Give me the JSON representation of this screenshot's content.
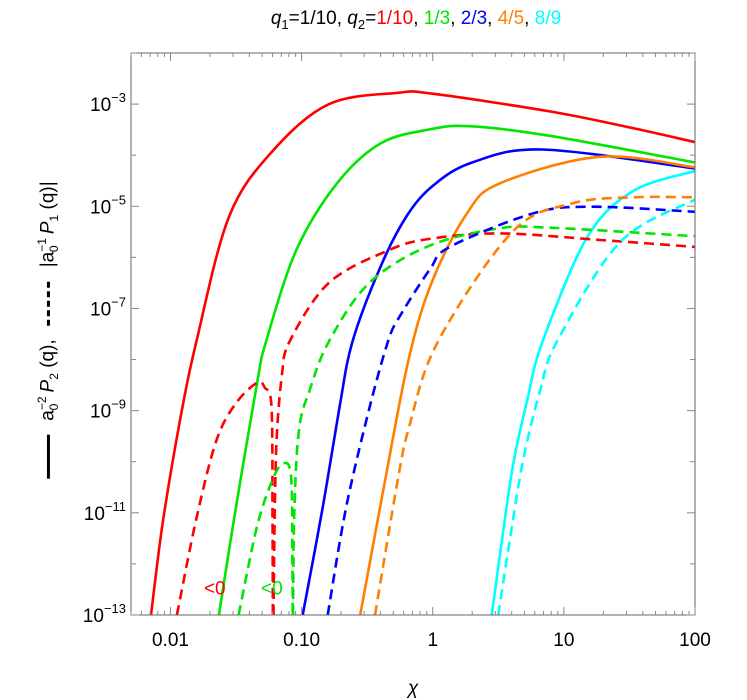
{
  "chart_data": {
    "type": "line",
    "title": {
      "q1_symbol": "q",
      "q1_sub": "1",
      "q1_value": "=1/10, ",
      "q2_symbol": "q",
      "q2_sub": "2",
      "q2_eq": "=",
      "separator": ", ",
      "values": [
        {
          "text": "1/10",
          "color": "#ff0000"
        },
        {
          "text": "1/3",
          "color": "#00e600"
        },
        {
          "text": "2/3",
          "color": "#0000ff"
        },
        {
          "text": "4/5",
          "color": "#ff8000"
        },
        {
          "text": "8/9",
          "color": "#00ffff"
        }
      ]
    },
    "xlabel": "χ",
    "ylabel": {
      "p2_a": "a",
      "p2_a_sub": "0",
      "p2_a_sup": "−2",
      "p2_P": "P",
      "p2_P_sub": "2",
      "p2_arg": "(q),",
      "p1_open": "|a",
      "p1_a_sub": "0",
      "p1_a_sup": "−1",
      "p1_P": "P",
      "p1_P_sub": "1",
      "p1_arg": "(q)|"
    },
    "xscale": "log",
    "yscale": "log",
    "xlim": [
      0.005,
      100
    ],
    "ylim": [
      1e-13,
      0.01
    ],
    "xticks": [
      {
        "value": 0.01,
        "label": "0.01"
      },
      {
        "value": 0.1,
        "label": "0.10"
      },
      {
        "value": 1,
        "label": "1"
      },
      {
        "value": 10,
        "label": "10"
      },
      {
        "value": 100,
        "label": "100"
      }
    ],
    "yticks": [
      {
        "exp": -3,
        "base": "10",
        "sup": "−3"
      },
      {
        "exp": -5,
        "base": "10",
        "sup": "−5"
      },
      {
        "exp": -7,
        "base": "10",
        "sup": "−7"
      },
      {
        "exp": -9,
        "base": "10",
        "sup": "−9"
      },
      {
        "exp": -11,
        "base": "10",
        "sup": "−11"
      },
      {
        "exp": -13,
        "base": "10",
        "sup": "−13"
      }
    ],
    "grid": false,
    "annotations": [
      {
        "text": "<0",
        "x": 0.018,
        "y": 2.5e-13,
        "color": "#ff0000"
      },
      {
        "text": "<0",
        "x": 0.049,
        "y": 2.5e-13,
        "color": "#00e600"
      }
    ],
    "series": [
      {
        "q2": "1/10",
        "style": "solid",
        "color": "#ff0000",
        "branches": [
          [
            [
              0.0071,
              1e-13
            ],
            [
              0.0087,
              6e-12
            ],
            [
              0.0117,
              5.6e-10
            ],
            [
              0.0158,
              2.3e-08
            ],
            [
              0.028,
              6.3e-06
            ],
            [
              0.06,
              0.00012
            ],
            [
              0.162,
              0.001
            ],
            [
              0.54,
              0.00166
            ],
            [
              1.0,
              0.0016
            ],
            [
              7.8,
              0.00072
            ],
            [
              31.6,
              0.00035
            ],
            [
              100,
              0.00018
            ]
          ]
        ]
      },
      {
        "q2": "1/3",
        "style": "solid",
        "color": "#00e600",
        "branches": [
          [
            [
              0.0234,
              1e-13
            ],
            [
              0.0316,
              1.3e-11
            ],
            [
              0.0457,
              3.4e-09
            ],
            [
              0.0537,
              2.3e-08
            ],
            [
              0.0912,
              1.4e-06
            ],
            [
              0.186,
              2.8e-05
            ],
            [
              0.4,
              0.00017
            ],
            [
              0.95,
              0.00032
            ],
            [
              1.9,
              0.00037
            ],
            [
              7.8,
              0.00024
            ],
            [
              100,
              7.2e-05
            ]
          ]
        ]
      },
      {
        "q2": "2/3",
        "style": "solid",
        "color": "#0000ff",
        "branches": [
          [
            [
              0.102,
              1e-13
            ],
            [
              0.145,
              1.3e-11
            ],
            [
              0.195,
              1.2e-09
            ],
            [
              0.245,
              2.3e-08
            ],
            [
              0.4,
              6.6e-07
            ],
            [
              0.63,
              6.3e-06
            ],
            [
              1.0,
              2.5e-05
            ],
            [
              2.0,
              7.2e-05
            ],
            [
              6.9,
              0.000129
            ],
            [
              100,
              5.5e-05
            ]
          ]
        ]
      },
      {
        "q2": "4/5",
        "style": "solid",
        "color": "#ff8000",
        "branches": [
          [
            [
              0.28,
              1e-13
            ],
            [
              0.42,
              2.8e-11
            ],
            [
              0.66,
              1.1e-08
            ],
            [
              1.0,
              3.6e-07
            ],
            [
              1.82,
              7.2e-06
            ],
            [
              3.24,
              2.8e-05
            ],
            [
              18.6,
              9.3e-05
            ],
            [
              100,
              5.8e-05
            ]
          ]
        ]
      },
      {
        "q2": "8/9",
        "style": "solid",
        "color": "#00ffff",
        "branches": [
          [
            [
              2.82,
              1e-13
            ],
            [
              3.24,
              1.4e-12
            ],
            [
              4.07,
              7.9e-11
            ],
            [
              5.25,
              1.6e-09
            ],
            [
              6.9,
              2.3e-08
            ],
            [
              15.1,
              2.5e-06
            ],
            [
              33.9,
              2e-05
            ],
            [
              100,
              4.9e-05
            ]
          ]
        ]
      },
      {
        "q2": "1/10",
        "style": "dashed",
        "color": "#ff0000",
        "branches": [
          [
            [
              0.0112,
              1e-13
            ],
            [
              0.0158,
              7.9e-12
            ],
            [
              0.0224,
              2.6e-10
            ],
            [
              0.0316,
              1.4e-09
            ],
            [
              0.0457,
              3.5e-09
            ],
            [
              0.0525,
              2.8e-09
            ],
            [
              0.0589,
              1.2e-09
            ],
            [
              0.06,
              1e-11
            ],
            [
              0.0603,
              1e-13
            ]
          ],
          [
            [
              0.061,
              1e-13
            ],
            [
              0.0624,
              1e-11
            ],
            [
              0.0646,
              3e-10
            ],
            [
              0.0708,
              5e-09
            ],
            [
              0.0813,
              2.3e-08
            ],
            [
              0.162,
              3.2e-07
            ],
            [
              0.468,
              1.4e-06
            ],
            [
              0.95,
              2.3e-06
            ],
            [
              3.24,
              2.95e-06
            ],
            [
              18.6,
              2.2e-06
            ],
            [
              100,
              1.6e-06
            ]
          ]
        ]
      },
      {
        "q2": "1/3",
        "style": "dashed",
        "color": "#00e600",
        "branches": [
          [
            [
              0.0331,
              1e-13
            ],
            [
              0.0457,
              5.4e-12
            ],
            [
              0.06,
              4.4e-11
            ],
            [
              0.0724,
              9.3e-11
            ],
            [
              0.0832,
              5e-11
            ],
            [
              0.0851,
              1e-12
            ],
            [
              0.0855,
              1e-13
            ]
          ],
          [
            [
              0.086,
              1e-13
            ],
            [
              0.088,
              1e-11
            ],
            [
              0.0955,
              4.2e-10
            ],
            [
              0.115,
              2.5e-09
            ],
            [
              0.162,
              2.3e-08
            ],
            [
              0.33,
              3.2e-07
            ],
            [
              0.95,
              1.7e-06
            ],
            [
              3.24,
              3.7e-06
            ],
            [
              7.8,
              3.8e-06
            ],
            [
              100,
              2.6e-06
            ]
          ]
        ]
      },
      {
        "q2": "2/3",
        "style": "dashed",
        "color": "#0000ff",
        "branches": [
          [
            [
              0.158,
              1e-13
            ],
            [
              0.219,
              1.3e-11
            ],
            [
              0.331,
              1.2e-09
            ],
            [
              0.457,
              2.3e-08
            ],
            [
              0.56,
              7e-08
            ],
            [
              0.95,
              5.8e-07
            ],
            [
              1.35,
              1.6e-06
            ],
            [
              5.75,
              7.2e-06
            ],
            [
              15.8,
              9.8e-06
            ],
            [
              100,
              7.8e-06
            ]
          ]
        ]
      },
      {
        "q2": "4/5",
        "style": "dashed",
        "color": "#ff8000",
        "branches": [
          [
            [
              0.363,
              1e-13
            ],
            [
              0.525,
              2.8e-11
            ],
            [
              0.66,
              4.8e-10
            ],
            [
              1.1,
              2.3e-08
            ],
            [
              4.07,
              3.2e-06
            ],
            [
              11.7,
              1.15e-05
            ],
            [
              33.9,
              1.5e-05
            ],
            [
              100,
              1.5e-05
            ]
          ]
        ]
      },
      {
        "q2": "8/9",
        "style": "dashed",
        "color": "#00ffff",
        "branches": [
          [
            [
              3.16,
              1e-13
            ],
            [
              3.89,
              3.2e-12
            ],
            [
              4.9,
              1.1e-10
            ],
            [
              6.6,
              2.5e-09
            ],
            [
              8.9,
              2.3e-08
            ],
            [
              26.9,
              2e-06
            ],
            [
              100,
              1.35e-05
            ]
          ]
        ]
      }
    ]
  }
}
